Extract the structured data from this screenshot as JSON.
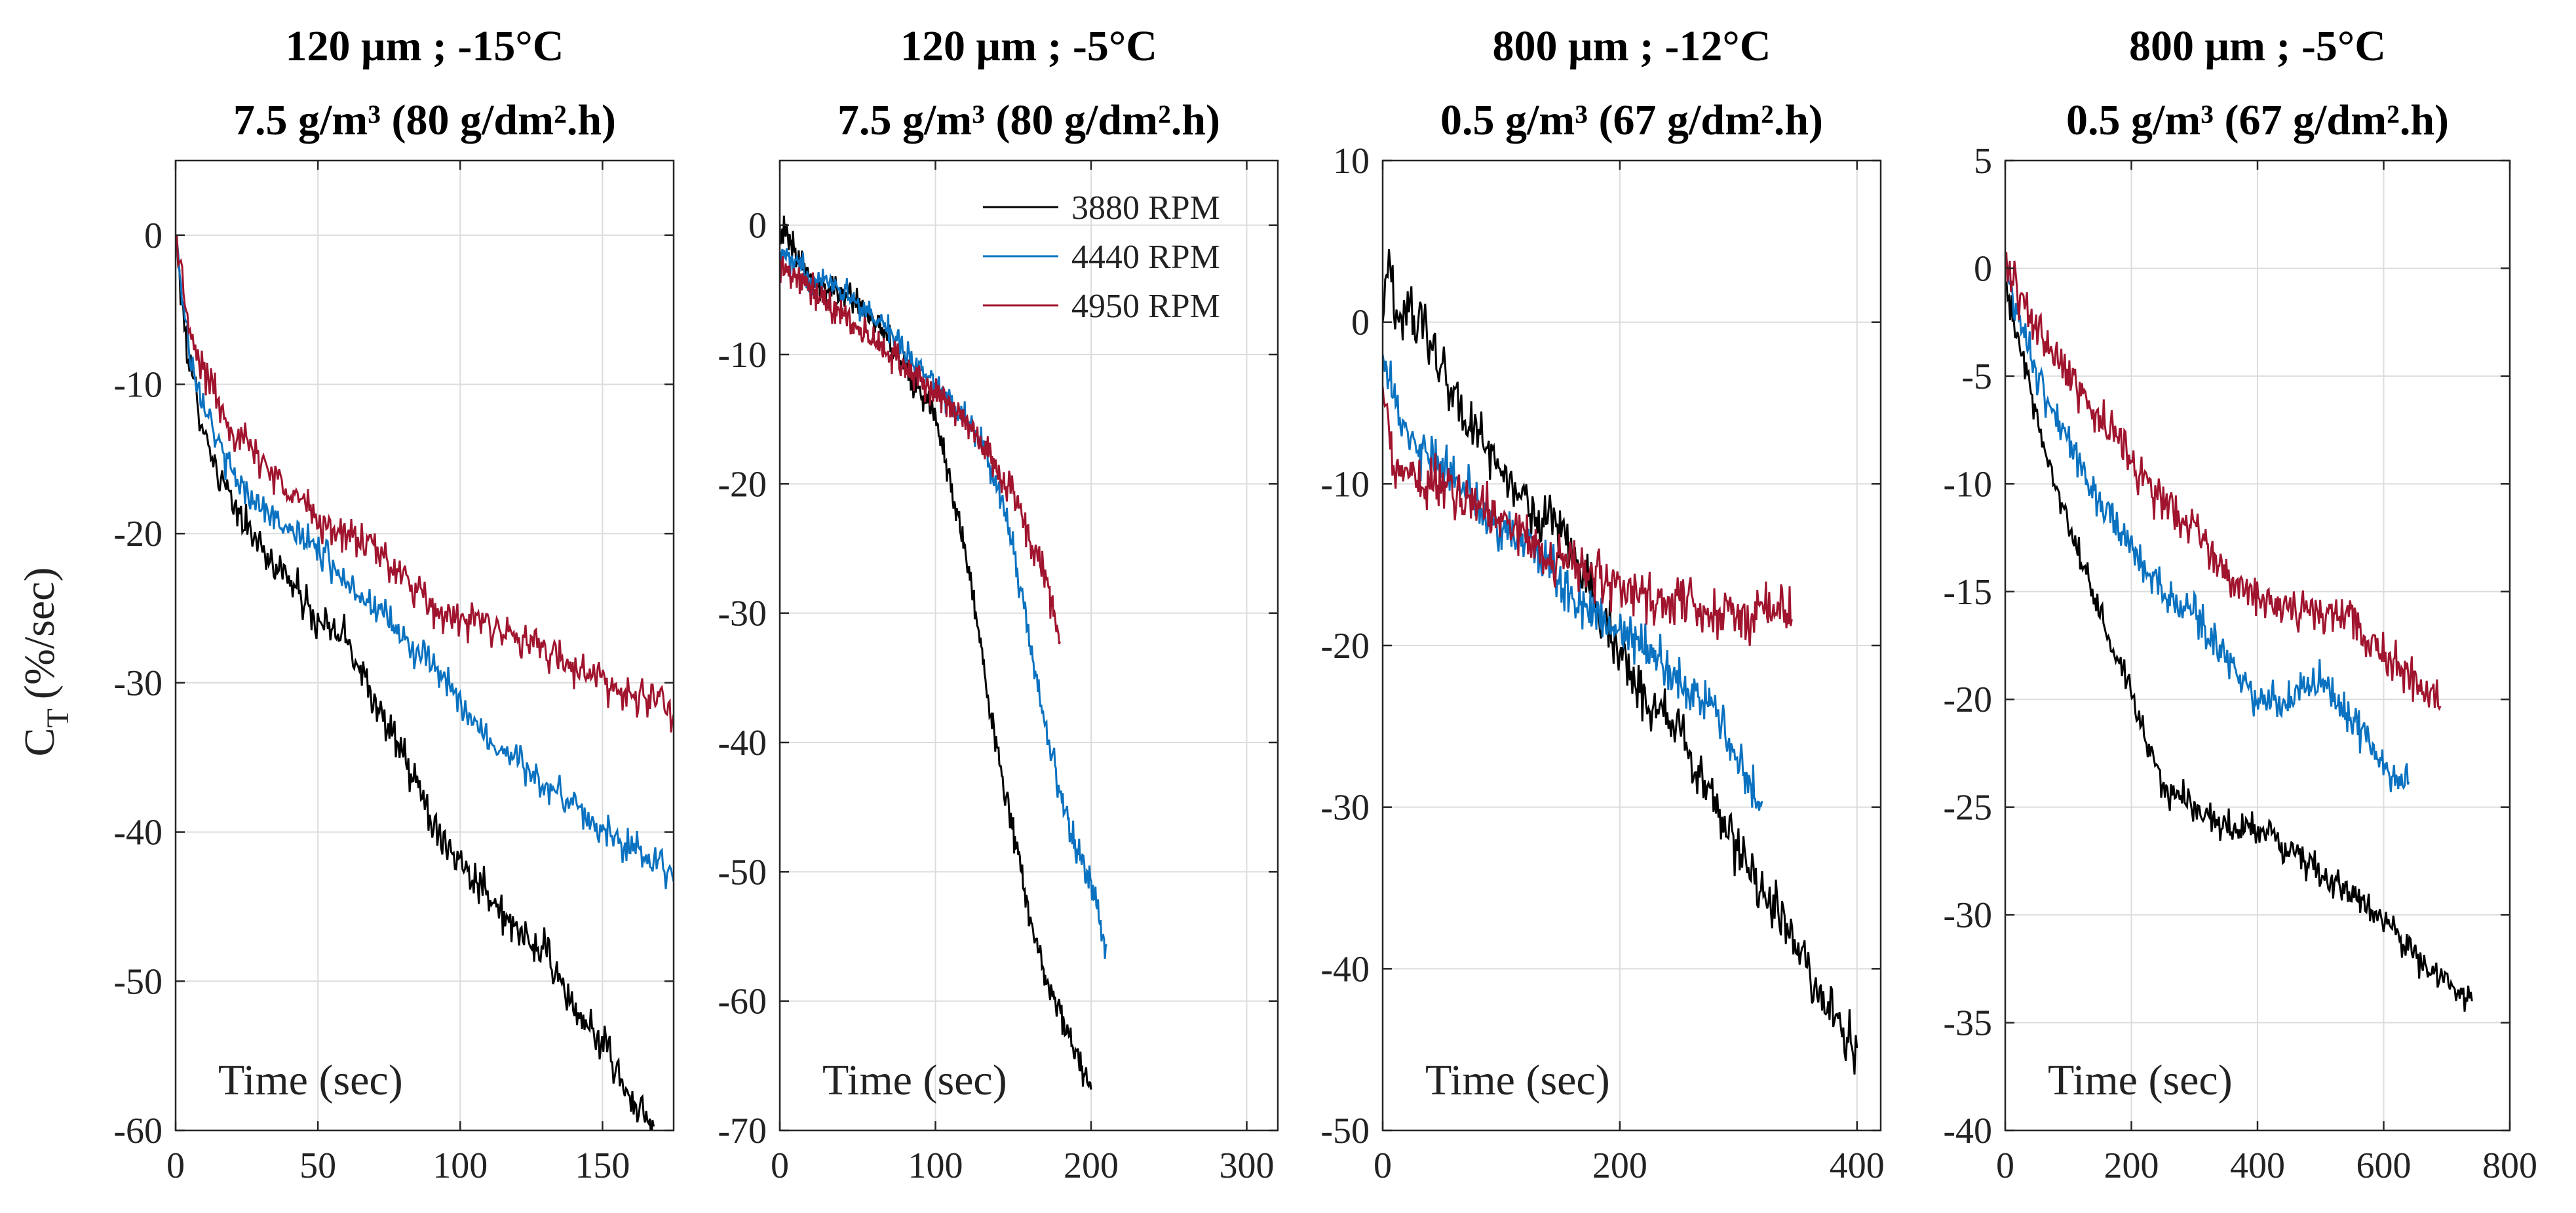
{
  "figure": {
    "ylabel_main": "C",
    "ylabel_sub": "T",
    "ylabel_units": "(%/sec)",
    "colors": {
      "3880 RPM": "#000000",
      "4440 RPM": "#0a72c0",
      "4950 RPM": "#a0142e"
    }
  },
  "chart_data": [
    {
      "type": "line",
      "title_line1": "120 μm ; -15°C",
      "title_line2": "7.5 g/m³ (80 g/dm².h)",
      "xlabel": "Time (sec)",
      "ylabel": "C_T (%/sec)",
      "xlim": [
        0,
        175
      ],
      "ylim": [
        -60,
        5
      ],
      "xticks": [
        0,
        50,
        100,
        150
      ],
      "yticks": [
        -60,
        -50,
        -40,
        -30,
        -20,
        -10,
        0
      ],
      "grid": true,
      "series": [
        {
          "name": "3880 RPM",
          "color": "#000000",
          "noise": 1.0,
          "x": [
            0,
            3,
            5,
            10,
            15,
            20,
            30,
            40,
            50,
            60,
            70,
            80,
            90,
            100,
            110,
            120,
            130,
            140,
            150,
            160,
            168
          ],
          "y": [
            0,
            -6,
            -9,
            -13,
            -16,
            -18,
            -21,
            -23,
            -26,
            -27,
            -31,
            -35,
            -39,
            -42,
            -44,
            -47,
            -48,
            -52,
            -54,
            -58,
            -60
          ]
        },
        {
          "name": "4440 RPM",
          "color": "#0a72c0",
          "noise": 0.9,
          "x": [
            0,
            3,
            5,
            10,
            15,
            20,
            30,
            40,
            50,
            60,
            70,
            80,
            90,
            100,
            110,
            120,
            130,
            140,
            150,
            160,
            170,
            175
          ],
          "y": [
            0,
            -5,
            -8,
            -11,
            -14,
            -16,
            -18,
            -20,
            -21,
            -23,
            -25,
            -27,
            -29,
            -31,
            -34,
            -35,
            -37,
            -38,
            -40,
            -41,
            -42,
            -43
          ]
        },
        {
          "name": "4950 RPM",
          "color": "#a0142e",
          "noise": 1.0,
          "x": [
            0,
            3,
            5,
            10,
            15,
            20,
            30,
            40,
            50,
            60,
            70,
            80,
            90,
            100,
            110,
            120,
            130,
            140,
            150,
            160,
            170,
            175
          ],
          "y": [
            0,
            -4,
            -7,
            -9,
            -11,
            -13,
            -15,
            -17,
            -19,
            -20,
            -21,
            -23,
            -25,
            -26,
            -26,
            -27,
            -28,
            -29,
            -30,
            -31,
            -31,
            -32
          ]
        }
      ]
    },
    {
      "type": "line",
      "title_line1": "120 μm ; -5°C",
      "title_line2": "7.5 g/m³ (80 g/dm².h)",
      "xlabel": "Time (sec)",
      "ylabel": "",
      "xlim": [
        0,
        320
      ],
      "ylim": [
        -70,
        5
      ],
      "xticks": [
        0,
        100,
        200,
        300
      ],
      "yticks": [
        -70,
        -60,
        -50,
        -40,
        -30,
        -20,
        -10,
        0
      ],
      "grid": true,
      "legend": [
        "3880 RPM",
        "4440 RPM",
        "4950 RPM"
      ],
      "legend_position": "top-right",
      "series": [
        {
          "name": "3880 RPM",
          "color": "#000000",
          "noise": 0.9,
          "x": [
            0,
            10,
            20,
            30,
            40,
            50,
            60,
            70,
            80,
            90,
            100,
            110,
            120,
            130,
            140,
            150,
            160,
            170,
            180,
            190,
            200
          ],
          "y": [
            0,
            -2,
            -4,
            -5,
            -5,
            -6,
            -7,
            -9,
            -11,
            -13,
            -15,
            -20,
            -26,
            -33,
            -41,
            -47,
            -53,
            -58,
            -61,
            -64,
            -67
          ]
        },
        {
          "name": "4440 RPM",
          "color": "#0a72c0",
          "noise": 0.9,
          "x": [
            0,
            10,
            20,
            30,
            40,
            50,
            60,
            70,
            80,
            90,
            100,
            110,
            120,
            130,
            140,
            150,
            160,
            170,
            180,
            190,
            200,
            210
          ],
          "y": [
            -2,
            -3,
            -4,
            -4,
            -5,
            -6,
            -7,
            -8,
            -10,
            -11,
            -12,
            -14,
            -15,
            -17,
            -20,
            -25,
            -32,
            -38,
            -44,
            -48,
            -51,
            -56
          ]
        },
        {
          "name": "4950 RPM",
          "color": "#a0142e",
          "noise": 1.0,
          "x": [
            0,
            10,
            20,
            30,
            40,
            50,
            60,
            70,
            80,
            90,
            100,
            110,
            120,
            130,
            140,
            150,
            160,
            170,
            180
          ],
          "y": [
            -3,
            -4,
            -5,
            -6,
            -7,
            -8,
            -9,
            -10,
            -11,
            -12,
            -13,
            -14,
            -15,
            -17,
            -19,
            -21,
            -24,
            -27,
            -32
          ]
        }
      ]
    },
    {
      "type": "line",
      "title_line1": "800 μm ; -12°C",
      "title_line2": "0.5 g/m³ (67 g/dm².h)",
      "xlabel": "Time (sec)",
      "ylabel": "",
      "xlim": [
        0,
        420
      ],
      "ylim": [
        -50,
        10
      ],
      "xticks": [
        0,
        200,
        400
      ],
      "yticks": [
        -50,
        -40,
        -30,
        -20,
        -10,
        0,
        10
      ],
      "grid": true,
      "series": [
        {
          "name": "3880 RPM",
          "color": "#000000",
          "noise": 1.3,
          "x": [
            0,
            5,
            10,
            20,
            30,
            50,
            70,
            100,
            130,
            160,
            190,
            220,
            250,
            280,
            310,
            340,
            370,
            400
          ],
          "y": [
            0,
            5,
            0,
            1,
            0,
            -3,
            -6,
            -9,
            -12,
            -14,
            -19,
            -23,
            -25,
            -30,
            -34,
            -37,
            -42,
            -45
          ]
        },
        {
          "name": "4440 RPM",
          "color": "#0a72c0",
          "noise": 1.1,
          "x": [
            0,
            5,
            10,
            20,
            30,
            50,
            70,
            100,
            130,
            160,
            190,
            220,
            250,
            280,
            300,
            320
          ],
          "y": [
            -2,
            -3,
            -5,
            -7,
            -8,
            -9,
            -10,
            -13,
            -14,
            -17,
            -19,
            -20,
            -22,
            -24,
            -27,
            -30
          ]
        },
        {
          "name": "4950 RPM",
          "color": "#a0142e",
          "noise": 1.3,
          "x": [
            0,
            5,
            10,
            20,
            30,
            50,
            70,
            100,
            130,
            160,
            190,
            220,
            250,
            280,
            310,
            345
          ],
          "y": [
            -4,
            -7,
            -9,
            -9,
            -10,
            -10,
            -11,
            -12,
            -14,
            -15,
            -16,
            -17,
            -17,
            -18,
            -18,
            -18
          ]
        }
      ]
    },
    {
      "type": "line",
      "title_line1": "800 μm ; -5°C",
      "title_line2": "0.5 g/m³ (67 g/dm².h)",
      "xlabel": "Time (sec)",
      "ylabel": "",
      "xlim": [
        0,
        800
      ],
      "ylim": [
        -40,
        5
      ],
      "xticks": [
        0,
        200,
        400,
        600,
        800
      ],
      "yticks": [
        -40,
        -35,
        -30,
        -25,
        -20,
        -15,
        -10,
        -5,
        0,
        5
      ],
      "grid": true,
      "series": [
        {
          "name": "3880 RPM",
          "color": "#000000",
          "noise": 0.6,
          "x": [
            0,
            20,
            50,
            100,
            150,
            200,
            250,
            300,
            350,
            400,
            450,
            500,
            550,
            600,
            650,
            700,
            740
          ],
          "y": [
            -1,
            -3,
            -7,
            -12,
            -16,
            -20,
            -24,
            -25,
            -26,
            -26,
            -27,
            -28,
            -29,
            -30,
            -32,
            -33,
            -34
          ]
        },
        {
          "name": "4440 RPM",
          "color": "#0a72c0",
          "noise": 0.7,
          "x": [
            0,
            20,
            50,
            100,
            150,
            200,
            250,
            300,
            350,
            400,
            450,
            500,
            550,
            600,
            640
          ],
          "y": [
            0,
            -2,
            -5,
            -8,
            -11,
            -13,
            -15,
            -16,
            -18,
            -20,
            -20,
            -19,
            -21,
            -23,
            -24
          ]
        },
        {
          "name": "4950 RPM",
          "color": "#a0142e",
          "noise": 0.8,
          "x": [
            0,
            20,
            50,
            100,
            150,
            200,
            250,
            300,
            350,
            400,
            450,
            500,
            550,
            600,
            650,
            690
          ],
          "y": [
            0,
            -1,
            -3,
            -5,
            -7,
            -9,
            -11,
            -12,
            -14,
            -15,
            -16,
            -16,
            -16,
            -18,
            -19,
            -20
          ]
        }
      ]
    }
  ]
}
